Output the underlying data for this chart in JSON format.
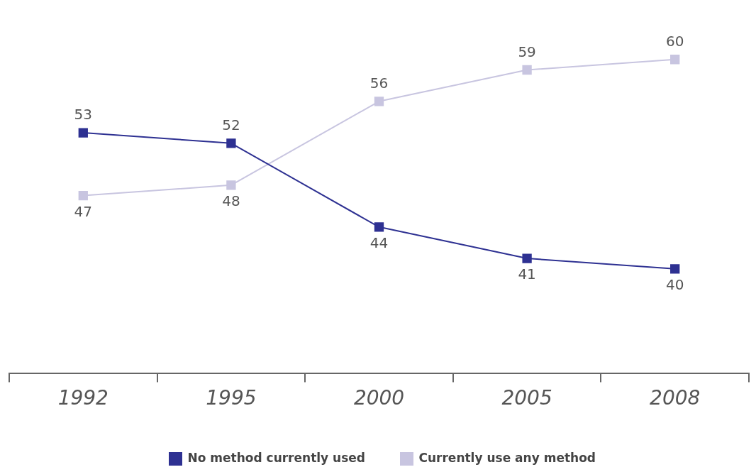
{
  "chart_data": {
    "type": "line",
    "categories": [
      "1992",
      "1995",
      "2000",
      "2005",
      "2008"
    ],
    "series": [
      {
        "name": "No method currently used",
        "color": "#2e3192",
        "values": [
          53,
          52,
          44,
          41,
          40
        ]
      },
      {
        "name": "Currently use any method",
        "color": "#c8c5e0",
        "values": [
          47,
          48,
          56,
          59,
          60
        ]
      }
    ],
    "data_labels": true,
    "legend": "bottom",
    "marker": "square",
    "grid": false
  }
}
